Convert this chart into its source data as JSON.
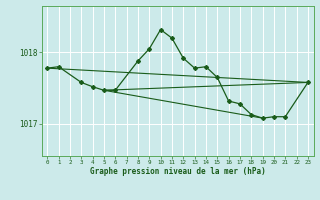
{
  "title": "Graphe pression niveau de la mer (hPa)",
  "background_color": "#cceaea",
  "grid_color": "#ffffff",
  "line_color": "#1a5c1a",
  "xlim": [
    -0.5,
    23.5
  ],
  "ylim": [
    1016.55,
    1018.65
  ],
  "yticks": [
    1017,
    1018
  ],
  "xticks": [
    0,
    1,
    2,
    3,
    4,
    5,
    6,
    7,
    8,
    9,
    10,
    11,
    12,
    13,
    14,
    15,
    16,
    17,
    18,
    19,
    20,
    21,
    22,
    23
  ],
  "series_main": {
    "x": [
      0,
      1,
      3,
      4,
      5,
      6,
      8,
      9,
      10,
      11,
      12,
      13,
      14,
      15,
      16,
      17,
      18,
      19,
      20,
      21,
      23
    ],
    "y": [
      1017.78,
      1017.8,
      1017.58,
      1017.52,
      1017.47,
      1017.47,
      1017.88,
      1018.05,
      1018.32,
      1018.2,
      1017.92,
      1017.78,
      1017.8,
      1017.65,
      1017.32,
      1017.28,
      1017.13,
      1017.08,
      1017.1,
      1017.1,
      1017.58
    ]
  },
  "line1": {
    "x": [
      0,
      23
    ],
    "y": [
      1017.78,
      1017.58
    ]
  },
  "line2": {
    "x": [
      5,
      23
    ],
    "y": [
      1017.47,
      1017.58
    ]
  },
  "line3": {
    "x": [
      5,
      19
    ],
    "y": [
      1017.47,
      1017.08
    ]
  }
}
